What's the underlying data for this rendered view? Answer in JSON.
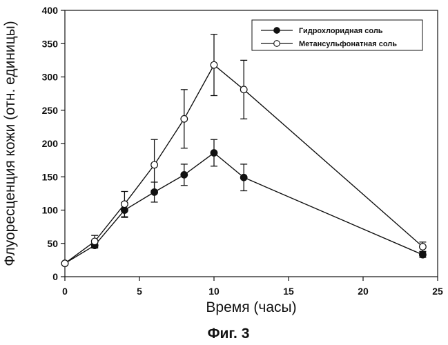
{
  "chart_data": {
    "type": "line",
    "title": "",
    "xlabel": "Время (часы)",
    "ylabel": "Флуоресценция кожи (отн. единицы)",
    "xlim": [
      0,
      25
    ],
    "ylim": [
      0,
      400
    ],
    "xticks": [
      0,
      5,
      10,
      15,
      20,
      25
    ],
    "yticks": [
      0,
      50,
      100,
      150,
      200,
      250,
      300,
      350,
      400
    ],
    "grid": false,
    "legend_position": "top-right",
    "series": [
      {
        "name": "Гидрохлоридная соль",
        "marker": "filled-circle",
        "x": [
          0,
          2,
          4,
          6,
          8,
          10,
          12,
          24
        ],
        "y": [
          20,
          47,
          100,
          127,
          153,
          186,
          149,
          33
        ],
        "error": [
          0,
          4,
          11,
          15,
          16,
          20,
          20,
          4
        ]
      },
      {
        "name": "Метансульфонатная соль",
        "marker": "open-circle",
        "x": [
          0,
          2,
          4,
          6,
          8,
          10,
          12,
          24
        ],
        "y": [
          20,
          53,
          109,
          168,
          237,
          318,
          281,
          45
        ],
        "error": [
          0,
          9,
          19,
          38,
          44,
          46,
          44,
          7
        ]
      }
    ]
  },
  "caption": "Фиг. 3"
}
